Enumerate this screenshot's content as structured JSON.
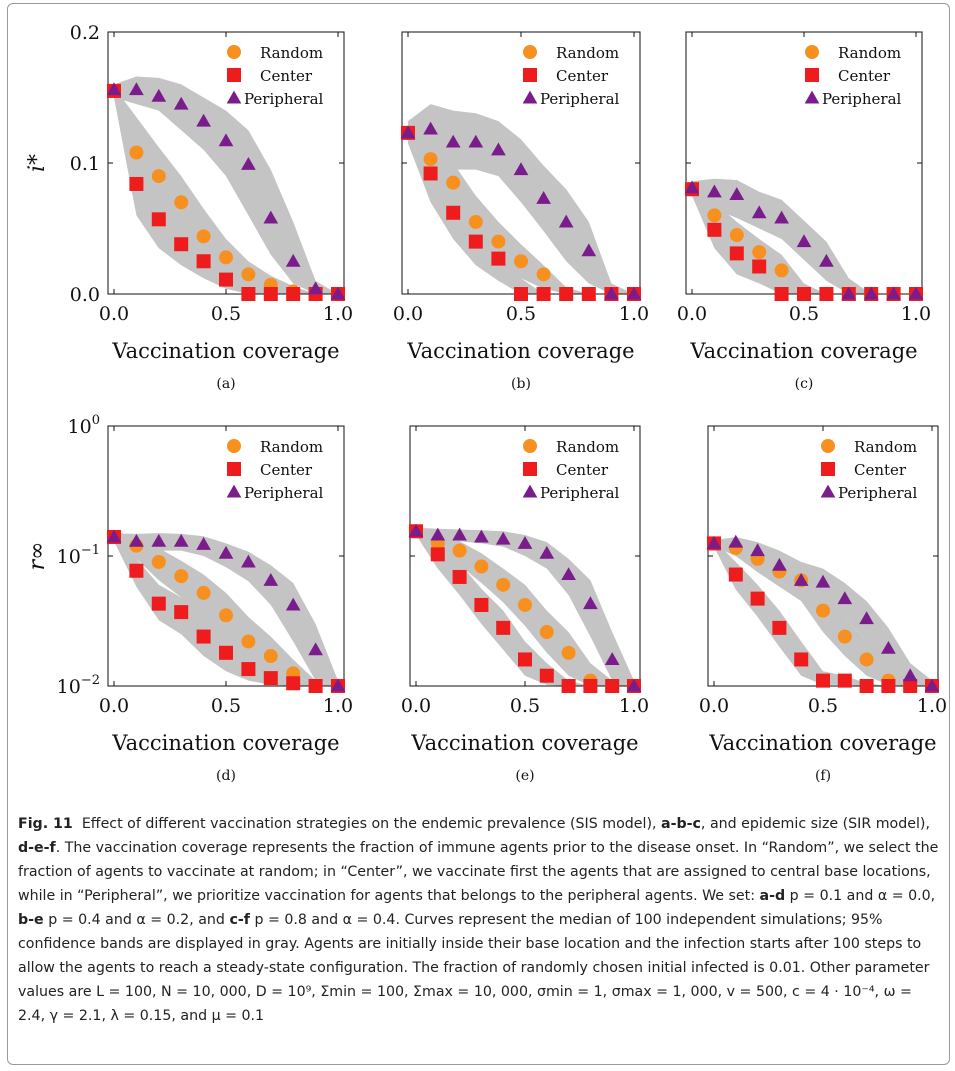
{
  "chart_data": [
    {
      "type": "scatter",
      "panel": "(a)",
      "scale": "linear",
      "ylim": [
        0,
        0.2
      ],
      "xlim": [
        0,
        1
      ],
      "ylabel": "i*",
      "xlabel": "Vaccination coverage",
      "x_ticks": [
        "0.0",
        "0.5",
        "1.0"
      ],
      "y_ticks": [
        "0.0",
        "0.1",
        "0.2"
      ],
      "legend": "top-right",
      "x": [
        0,
        0.1,
        0.2,
        0.3,
        0.4,
        0.5,
        0.6,
        0.7,
        0.8,
        0.9,
        1.0
      ],
      "series": [
        {
          "name": "Random",
          "values": [
            0.155,
            0.108,
            0.09,
            0.07,
            0.044,
            0.028,
            0.015,
            0.007,
            0.002,
            0.0,
            0.0
          ],
          "band_low": [
            0.15,
            0.082,
            0.068,
            0.05,
            0.028,
            0.016,
            0.007,
            0.002,
            0.0,
            0.0,
            0.0
          ],
          "band_high": [
            0.158,
            0.135,
            0.112,
            0.09,
            0.065,
            0.042,
            0.025,
            0.014,
            0.006,
            0.0,
            0.0
          ]
        },
        {
          "name": "Center",
          "values": [
            0.155,
            0.084,
            0.057,
            0.038,
            0.025,
            0.011,
            0.0,
            0.0,
            0.0,
            0.0,
            0.0
          ],
          "band_low": [
            0.15,
            0.06,
            0.035,
            0.022,
            0.012,
            0.004,
            0.0,
            0.0,
            0.0,
            0.0,
            0.0
          ],
          "band_high": [
            0.158,
            0.1,
            0.075,
            0.052,
            0.035,
            0.02,
            0.008,
            0.003,
            0.0,
            0.0,
            0.0
          ]
        },
        {
          "name": "Peripheral",
          "values": [
            0.156,
            0.156,
            0.151,
            0.145,
            0.132,
            0.117,
            0.099,
            0.058,
            0.025,
            0.004,
            0.0
          ],
          "band_low": [
            0.15,
            0.145,
            0.14,
            0.125,
            0.11,
            0.09,
            0.06,
            0.03,
            0.008,
            0.0,
            0.0
          ],
          "band_high": [
            0.16,
            0.166,
            0.165,
            0.16,
            0.15,
            0.14,
            0.125,
            0.095,
            0.055,
            0.01,
            0.0
          ]
        }
      ]
    },
    {
      "type": "scatter",
      "panel": "(b)",
      "scale": "linear",
      "ylim": [
        0,
        0.2
      ],
      "xlim": [
        0,
        1
      ],
      "xlabel": "Vaccination coverage",
      "x_ticks": [
        "0.0",
        "0.5",
        "1.0"
      ],
      "y_ticks": [],
      "legend": "top-right",
      "x": [
        0,
        0.1,
        0.2,
        0.3,
        0.4,
        0.5,
        0.6,
        0.7,
        0.8,
        0.9,
        1.0
      ],
      "series": [
        {
          "name": "Random",
          "values": [
            0.123,
            0.103,
            0.085,
            0.055,
            0.04,
            0.025,
            0.015,
            0.0,
            0.0,
            0.0,
            0.0
          ],
          "band_low": [
            0.115,
            0.085,
            0.062,
            0.038,
            0.022,
            0.012,
            0.004,
            0.0,
            0.0,
            0.0,
            0.0
          ],
          "band_high": [
            0.13,
            0.118,
            0.1,
            0.075,
            0.055,
            0.038,
            0.022,
            0.005,
            0.0,
            0.0,
            0.0
          ]
        },
        {
          "name": "Center",
          "values": [
            0.123,
            0.092,
            0.062,
            0.04,
            0.027,
            0.0,
            0.0,
            0.0,
            0.0,
            0.0,
            0.0
          ],
          "band_low": [
            0.115,
            0.07,
            0.042,
            0.022,
            0.01,
            0.0,
            0.0,
            0.0,
            0.0,
            0.0,
            0.0
          ],
          "band_high": [
            0.13,
            0.108,
            0.08,
            0.055,
            0.038,
            0.012,
            0.0,
            0.0,
            0.0,
            0.0,
            0.0
          ]
        },
        {
          "name": "Peripheral",
          "values": [
            0.123,
            0.126,
            0.116,
            0.116,
            0.11,
            0.095,
            0.073,
            0.055,
            0.033,
            0.0,
            0.0
          ],
          "band_low": [
            0.115,
            0.1,
            0.095,
            0.095,
            0.09,
            0.07,
            0.048,
            0.025,
            0.008,
            0.0,
            0.0
          ],
          "band_high": [
            0.132,
            0.145,
            0.14,
            0.138,
            0.132,
            0.118,
            0.098,
            0.08,
            0.055,
            0.008,
            0.0
          ]
        }
      ]
    },
    {
      "type": "scatter",
      "panel": "(c)",
      "scale": "linear",
      "ylim": [
        0,
        0.2
      ],
      "xlim": [
        0,
        1
      ],
      "xlabel": "Vaccination coverage",
      "x_ticks": [
        "0.0",
        "0.5",
        "1.0"
      ],
      "y_ticks": [],
      "legend": "top-right",
      "x": [
        0,
        0.1,
        0.2,
        0.3,
        0.4,
        0.5,
        0.6,
        0.7,
        0.8,
        0.9,
        1.0
      ],
      "series": [
        {
          "name": "Random",
          "values": [
            0.08,
            0.06,
            0.045,
            0.032,
            0.018,
            0.0,
            0.0,
            0.0,
            0.0,
            0.0,
            0.0
          ],
          "band_low": [
            0.075,
            0.045,
            0.03,
            0.018,
            0.008,
            0.0,
            0.0,
            0.0,
            0.0,
            0.0,
            0.0
          ],
          "band_high": [
            0.085,
            0.07,
            0.055,
            0.042,
            0.03,
            0.008,
            0.0,
            0.0,
            0.0,
            0.0,
            0.0
          ]
        },
        {
          "name": "Center",
          "values": [
            0.08,
            0.049,
            0.031,
            0.021,
            0.0,
            0.0,
            0.0,
            0.0,
            0.0,
            0.0,
            0.0
          ],
          "band_low": [
            0.075,
            0.035,
            0.015,
            0.008,
            0.0,
            0.0,
            0.0,
            0.0,
            0.0,
            0.0,
            0.0
          ],
          "band_high": [
            0.085,
            0.06,
            0.045,
            0.032,
            0.012,
            0.0,
            0.0,
            0.0,
            0.0,
            0.0,
            0.0
          ]
        },
        {
          "name": "Peripheral",
          "values": [
            0.081,
            0.078,
            0.076,
            0.062,
            0.058,
            0.04,
            0.025,
            0.0,
            0.0,
            0.0,
            0.0
          ],
          "band_low": [
            0.075,
            0.065,
            0.058,
            0.05,
            0.042,
            0.026,
            0.01,
            0.0,
            0.0,
            0.0,
            0.0
          ],
          "band_high": [
            0.086,
            0.088,
            0.087,
            0.078,
            0.072,
            0.056,
            0.04,
            0.012,
            0.0,
            0.0,
            0.0
          ]
        }
      ]
    },
    {
      "type": "scatter",
      "panel": "(d)",
      "scale": "log",
      "ylim": [
        0.01,
        1
      ],
      "xlim": [
        0,
        1
      ],
      "ylabel": "r∞",
      "xlabel": "Vaccination coverage",
      "x_ticks": [
        "0.0",
        "0.5",
        "1.0"
      ],
      "y_ticks": [
        "10^-2",
        "10^-1",
        "10^0"
      ],
      "legend": "top-right",
      "x": [
        0,
        0.1,
        0.2,
        0.3,
        0.4,
        0.5,
        0.6,
        0.7,
        0.8,
        0.9,
        1.0
      ],
      "series": [
        {
          "name": "Random",
          "values": [
            0.14,
            0.12,
            0.09,
            0.07,
            0.052,
            0.035,
            0.022,
            0.017,
            0.0125,
            0.01,
            0.01
          ],
          "band_low": [
            0.13,
            0.095,
            0.065,
            0.048,
            0.033,
            0.022,
            0.015,
            0.012,
            0.01,
            0.01,
            0.01
          ],
          "band_high": [
            0.15,
            0.14,
            0.115,
            0.092,
            0.072,
            0.052,
            0.034,
            0.024,
            0.016,
            0.011,
            0.01
          ]
        },
        {
          "name": "Center",
          "values": [
            0.14,
            0.077,
            0.043,
            0.037,
            0.024,
            0.018,
            0.0135,
            0.0115,
            0.0105,
            0.01,
            0.01
          ],
          "band_low": [
            0.13,
            0.058,
            0.032,
            0.025,
            0.017,
            0.013,
            0.011,
            0.0102,
            0.01,
            0.01,
            0.01
          ],
          "band_high": [
            0.15,
            0.095,
            0.06,
            0.048,
            0.034,
            0.025,
            0.019,
            0.015,
            0.012,
            0.0105,
            0.01
          ]
        },
        {
          "name": "Peripheral",
          "values": [
            0.14,
            0.13,
            0.13,
            0.13,
            0.123,
            0.105,
            0.09,
            0.065,
            0.042,
            0.019,
            0.01
          ],
          "band_low": [
            0.13,
            0.115,
            0.11,
            0.11,
            0.1,
            0.082,
            0.064,
            0.042,
            0.022,
            0.011,
            0.01
          ],
          "band_high": [
            0.15,
            0.148,
            0.15,
            0.148,
            0.142,
            0.125,
            0.108,
            0.085,
            0.062,
            0.03,
            0.011
          ]
        }
      ]
    },
    {
      "type": "scatter",
      "panel": "(e)",
      "scale": "log",
      "ylim": [
        0.01,
        1
      ],
      "xlim": [
        0,
        1
      ],
      "xlabel": "Vaccination coverage",
      "x_ticks": [
        "0.0",
        "0.5",
        "1.0"
      ],
      "y_ticks": [],
      "legend": "top-right",
      "x": [
        0,
        0.1,
        0.2,
        0.3,
        0.4,
        0.5,
        0.6,
        0.7,
        0.8,
        0.9,
        1.0
      ],
      "series": [
        {
          "name": "Random",
          "values": [
            0.155,
            0.125,
            0.11,
            0.083,
            0.06,
            0.042,
            0.026,
            0.018,
            0.011,
            0.01,
            0.01
          ],
          "band_low": [
            0.145,
            0.1,
            0.085,
            0.062,
            0.044,
            0.029,
            0.018,
            0.012,
            0.01,
            0.01,
            0.01
          ],
          "band_high": [
            0.165,
            0.145,
            0.13,
            0.105,
            0.08,
            0.06,
            0.038,
            0.026,
            0.015,
            0.011,
            0.01
          ]
        },
        {
          "name": "Center",
          "values": [
            0.155,
            0.103,
            0.069,
            0.042,
            0.028,
            0.016,
            0.012,
            0.01,
            0.01,
            0.01,
            0.01
          ],
          "band_low": [
            0.145,
            0.08,
            0.05,
            0.03,
            0.019,
            0.012,
            0.0102,
            0.01,
            0.01,
            0.01,
            0.01
          ],
          "band_high": [
            0.165,
            0.12,
            0.088,
            0.056,
            0.038,
            0.022,
            0.015,
            0.011,
            0.01,
            0.01,
            0.01
          ]
        },
        {
          "name": "Peripheral",
          "values": [
            0.155,
            0.145,
            0.145,
            0.14,
            0.135,
            0.125,
            0.105,
            0.072,
            0.043,
            0.016,
            0.01
          ],
          "band_low": [
            0.145,
            0.13,
            0.13,
            0.125,
            0.118,
            0.1,
            0.08,
            0.05,
            0.024,
            0.011,
            0.01
          ],
          "band_high": [
            0.165,
            0.162,
            0.16,
            0.158,
            0.155,
            0.145,
            0.128,
            0.095,
            0.065,
            0.026,
            0.011
          ]
        }
      ]
    },
    {
      "type": "scatter",
      "panel": "(f)",
      "scale": "log",
      "ylim": [
        0.01,
        1
      ],
      "xlim": [
        0,
        1
      ],
      "xlabel": "Vaccination coverage",
      "x_ticks": [
        "0.0",
        "0.5",
        "1.0"
      ],
      "y_ticks": [],
      "legend": "top-right",
      "x": [
        0,
        0.1,
        0.2,
        0.3,
        0.4,
        0.5,
        0.6,
        0.7,
        0.8,
        0.9,
        1.0
      ],
      "series": [
        {
          "name": "Random",
          "values": [
            0.125,
            0.115,
            0.095,
            0.076,
            0.065,
            0.038,
            0.024,
            0.016,
            0.011,
            0.01,
            0.01
          ],
          "band_low": [
            0.118,
            0.1,
            0.075,
            0.058,
            0.045,
            0.026,
            0.017,
            0.012,
            0.0102,
            0.01,
            0.01
          ],
          "band_high": [
            0.132,
            0.13,
            0.112,
            0.095,
            0.08,
            0.055,
            0.034,
            0.022,
            0.014,
            0.011,
            0.01
          ]
        },
        {
          "name": "Center",
          "values": [
            0.125,
            0.072,
            0.047,
            0.028,
            0.016,
            0.011,
            0.011,
            0.01,
            0.01,
            0.01,
            0.01
          ],
          "band_low": [
            0.118,
            0.055,
            0.034,
            0.02,
            0.012,
            0.0102,
            0.0102,
            0.01,
            0.01,
            0.01,
            0.01
          ],
          "band_high": [
            0.132,
            0.09,
            0.06,
            0.038,
            0.022,
            0.013,
            0.012,
            0.0105,
            0.01,
            0.01,
            0.01
          ]
        },
        {
          "name": "Peripheral",
          "values": [
            0.125,
            0.128,
            0.11,
            0.085,
            0.065,
            0.063,
            0.047,
            0.033,
            0.0195,
            0.012,
            0.01
          ],
          "band_low": [
            0.118,
            0.115,
            0.09,
            0.07,
            0.05,
            0.048,
            0.034,
            0.022,
            0.013,
            0.0105,
            0.01
          ],
          "band_high": [
            0.132,
            0.14,
            0.128,
            0.11,
            0.09,
            0.08,
            0.062,
            0.045,
            0.028,
            0.015,
            0.011
          ]
        }
      ]
    }
  ],
  "caption": {
    "fig_label": "Fig. 11",
    "p1": "Effect of different vaccination strategies on the endemic prevalence (SIS model),",
    "p1_refs": "a-b-c",
    "p2": ", and epidemic size (SIR model),",
    "p2_refs": "d-e-f",
    "p3": ". The vaccination coverage represents the fraction of immune agents prior to the disease onset. In “Random”, we select the fraction of agents to vaccinate at random; in “Center”, we vaccinate first the agents that are assigned to central base locations, while in “Peripheral”, we prioritize vaccination for agents that belongs to the peripheral agents. We set:",
    "set1_refs": "a-d",
    "set1": "p = 0.1 and α = 0.0,",
    "set2_refs": "b-e",
    "set2": "p = 0.4 and α = 0.2, and",
    "set3_refs": "c-f",
    "set3": "p = 0.8 and α = 0.4. Curves represent the median of 100 independent simulations; 95% confidence bands are displayed in gray. Agents are initially inside their base location and the infection starts after 100 steps to allow the agents to reach a steady-state configuration. The fraction of randomly chosen initial infected is 0.01. Other parameter values are",
    "params": "L = 100, N = 10, 000, D = 10⁹, Σmin = 100, Σmax = 10, 000, σmin = 1, σmax = 1, 000, v = 500, c = 4 · 10⁻⁴, ω = 2.4, γ = 2.1, λ = 0.15, and μ = 0.1"
  },
  "colors": {
    "random": "#f7901e",
    "center": "#ee1c1c",
    "peripheral": "#7b1c8c",
    "band": "#c4c4c4"
  }
}
